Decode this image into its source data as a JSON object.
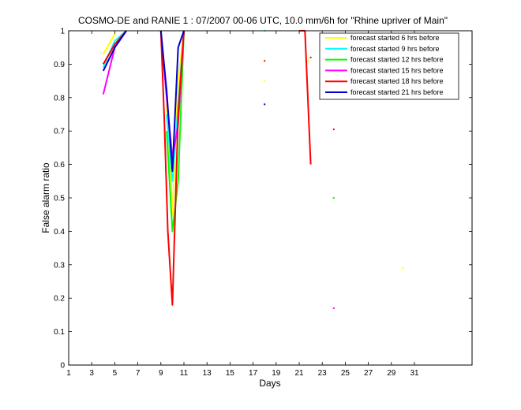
{
  "chart_data": {
    "type": "line",
    "title": "COSMO-DE and RANIE 1 : 07/2007 00-06 UTC, 10.0 mm/6h for \"Rhine upriver of Main\"",
    "xlabel": "Days",
    "ylabel": "False alarm ratio",
    "xlim": [
      1,
      36
    ],
    "ylim": [
      0,
      1
    ],
    "xticks": [
      1,
      3,
      5,
      7,
      9,
      11,
      13,
      15,
      17,
      19,
      21,
      23,
      25,
      27,
      29,
      31
    ],
    "xtick_labels": [
      "1",
      "3",
      "5",
      "7",
      "9",
      "11",
      "13",
      "15",
      "17",
      "19",
      "21",
      "23",
      "25",
      "27",
      "29",
      "31"
    ],
    "yticks": [
      0,
      0.1,
      0.2,
      0.3,
      0.4,
      0.5,
      0.6,
      0.7,
      0.8,
      0.9,
      1
    ],
    "ytick_labels": [
      "0",
      "0.1",
      "0.2",
      "0.3",
      "0.4",
      "0.5",
      "0.6",
      "0.7",
      "0.8",
      "0.9",
      "1"
    ],
    "legend_position": "top-right",
    "series": [
      {
        "name": "forecast started 6 hrs before",
        "color": "#ffff00",
        "segments": [
          [
            [
              4,
              0.93
            ],
            [
              5,
              0.99
            ]
          ],
          [
            [
              9.5,
              0.78
            ],
            [
              10,
              0.45
            ],
            [
              10.5,
              0.85
            ],
            [
              11,
              1
            ]
          ]
        ],
        "points": [
          [
            18,
            0.85
          ],
          [
            30,
            0.29
          ],
          [
            21.8,
            0.91
          ]
        ]
      },
      {
        "name": "forecast started 9 hrs before",
        "color": "#00ffff",
        "segments": [
          [
            [
              4,
              0.89
            ],
            [
              5,
              0.97
            ],
            [
              6,
              1
            ]
          ],
          [
            [
              9.5,
              0.75
            ],
            [
              10,
              0.55
            ],
            [
              11,
              1
            ]
          ]
        ],
        "points": [
          [
            18,
            1
          ]
        ]
      },
      {
        "name": "forecast started 12 hrs before",
        "color": "#00ff00",
        "segments": [
          [
            [
              9.5,
              0.7
            ],
            [
              10,
              0.4
            ],
            [
              10.5,
              0.55
            ],
            [
              11,
              1
            ]
          ]
        ],
        "points": [
          [
            24,
            0.5
          ]
        ]
      },
      {
        "name": "forecast started 15 hrs before",
        "color": "#ff00ff",
        "segments": [
          [
            [
              4,
              0.81
            ],
            [
              5,
              0.95
            ],
            [
              6,
              1
            ]
          ],
          [
            [
              9,
              1
            ],
            [
              9.5,
              0.8
            ],
            [
              10,
              0.62
            ],
            [
              10.5,
              0.72
            ],
            [
              11,
              1
            ]
          ]
        ],
        "points": [
          [
            24,
            0.17
          ]
        ]
      },
      {
        "name": "forecast started 18 hrs before",
        "color": "#ff0000",
        "segments": [
          [
            [
              4,
              0.9
            ],
            [
              5,
              0.96
            ],
            [
              6,
              1
            ]
          ],
          [
            [
              9,
              1
            ],
            [
              9.3,
              0.73
            ],
            [
              9.6,
              0.4
            ],
            [
              10,
              0.18
            ],
            [
              10.5,
              0.75
            ],
            [
              11,
              1
            ]
          ],
          [
            [
              21,
              1
            ],
            [
              21.5,
              1
            ],
            [
              22,
              0.6
            ]
          ]
        ],
        "points": [
          [
            18,
            0.91
          ],
          [
            22,
            0.92
          ],
          [
            24,
            0.705
          ]
        ]
      },
      {
        "name": "forecast started 21 hrs before",
        "color": "#0000cc",
        "segments": [
          [
            [
              4,
              0.88
            ],
            [
              5,
              0.95
            ],
            [
              6,
              1
            ]
          ],
          [
            [
              9,
              1
            ],
            [
              9.5,
              0.82
            ],
            [
              10,
              0.58
            ],
            [
              10.5,
              0.95
            ],
            [
              11,
              1
            ]
          ]
        ],
        "points": [
          [
            18,
            0.78
          ]
        ]
      }
    ]
  }
}
